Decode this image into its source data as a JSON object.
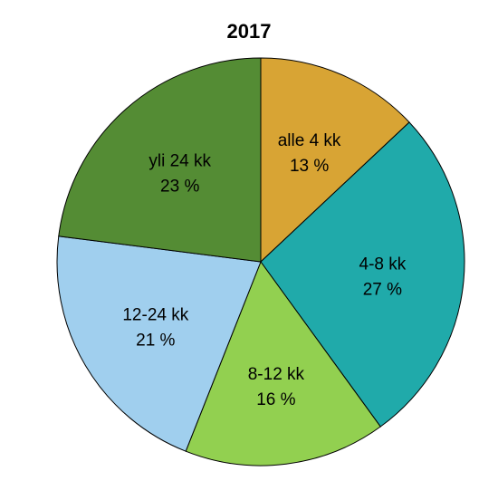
{
  "chart_data": {
    "type": "pie",
    "title": "2017",
    "start_angle_deg": 0,
    "direction": "clockwise",
    "slices": [
      {
        "label": "alle 4 kk",
        "value": 13,
        "value_label": "13 %",
        "color": "#D8A434"
      },
      {
        "label": "4-8 kk",
        "value": 27,
        "value_label": "27 %",
        "color": "#20AAAA"
      },
      {
        "label": "8-12 kk",
        "value": 16,
        "value_label": "16 %",
        "color": "#92D050"
      },
      {
        "label": "12-24 kk",
        "value": 21,
        "value_label": "21 %",
        "color": "#A0CFEE"
      },
      {
        "label": "yli 24 kk",
        "value": 23,
        "value_label": "23 %",
        "color": "#548C34"
      }
    ],
    "outline_color": "#000000",
    "legend": "none"
  }
}
